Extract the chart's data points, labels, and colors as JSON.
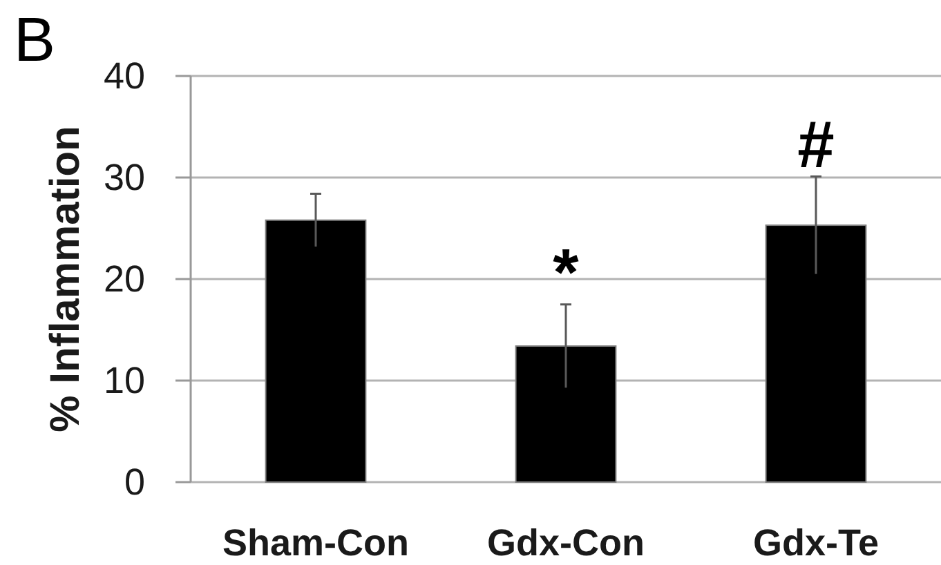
{
  "chart_data": {
    "type": "bar",
    "ylabel": "% Inflammation",
    "categories": [
      "Sham-Con",
      "Gdx-Con",
      "Gdx-Te"
    ],
    "values": [
      25.8,
      13.4,
      25.3
    ],
    "errors": [
      2.6,
      4.1,
      4.8
    ],
    "color": "#000000",
    "ylim": [
      0,
      40
    ],
    "yticks": [
      0,
      10,
      20,
      30,
      40
    ],
    "grid": "y",
    "annotations": [
      "B",
      {
        "text": "*",
        "x": "Gdx-Con",
        "y": 17.5
      },
      {
        "text": "#",
        "x": "Gdx-Te",
        "y": 30.1
      }
    ]
  }
}
